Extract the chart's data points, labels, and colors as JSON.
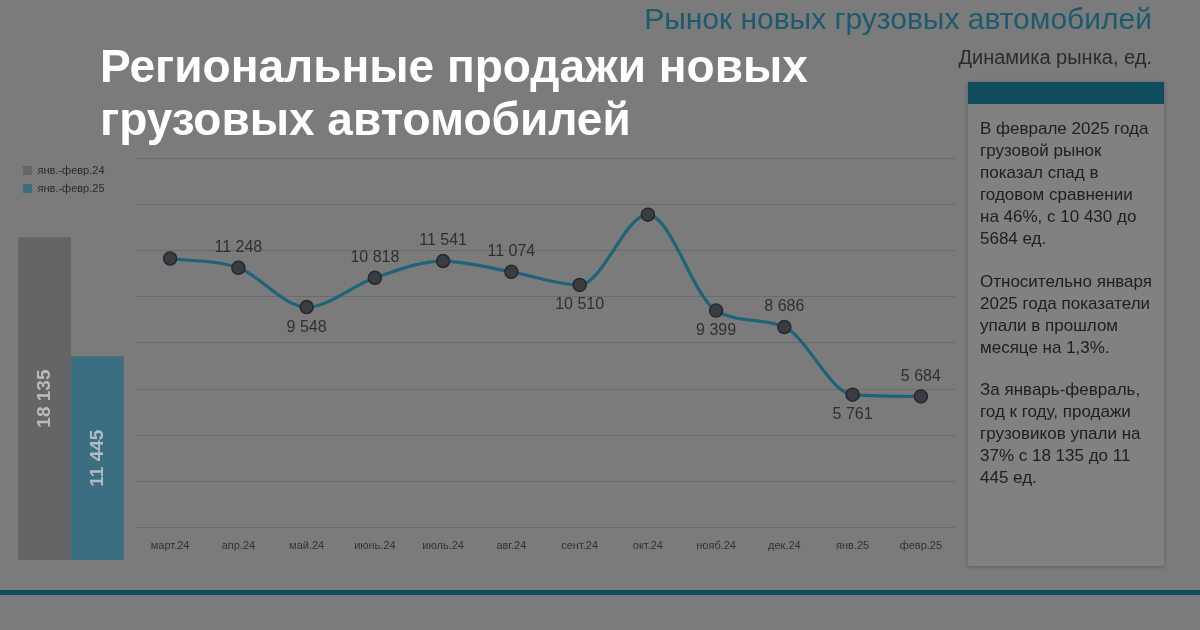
{
  "chart_data": [
    {
      "type": "bar",
      "categories": [
        null
      ],
      "series": [
        {
          "name": "янв.-февр.24",
          "color": "#656565",
          "values": [
            18135
          ],
          "value_labels": [
            "18 135"
          ]
        },
        {
          "name": "янв.-февр.25",
          "color": "#3b6e80",
          "values": [
            11445
          ],
          "value_labels": [
            "11 445"
          ]
        }
      ],
      "legend": "top left",
      "tick_labels": false
    },
    {
      "type": "line",
      "title": "Региональные продажи новых грузовых автомобилей",
      "subtitle": "Рынок новых грузовых автомобилей",
      "annotations": [
        "Динамика рынка, ед."
      ],
      "categories": [
        "март.24",
        "апр.24",
        "май.24",
        "июнь.24",
        "июль.24",
        "авг.24",
        "сент.24",
        "окт.24",
        "нояб.24",
        "дек.24",
        "янв.25",
        "февр.25"
      ],
      "values": [
        11650,
        11248,
        9548,
        10818,
        11541,
        11074,
        10510,
        13550,
        9399,
        8686,
        5761,
        5684
      ],
      "color": "#1c6479",
      "value_labels": [
        null,
        "11 248",
        "9 548",
        "10 818",
        "11 541",
        "11 074",
        "10 510",
        null,
        "9 399",
        "8 686",
        "5 761",
        "5 684"
      ],
      "ylim": [
        0,
        16000
      ],
      "yticks": [
        {
          "value": 0,
          "label": null
        },
        {
          "value": 2000,
          "label": null
        },
        {
          "value": 4000,
          "label": null
        },
        {
          "value": 6000,
          "label": null
        },
        {
          "value": 8000,
          "label": null
        },
        {
          "value": 10000,
          "label": null
        },
        {
          "value": 12000,
          "label": null
        },
        {
          "value": 14000,
          "label": null
        },
        {
          "value": 16000,
          "label": null
        }
      ],
      "grid": "y",
      "marker": "circle",
      "tick_labels": "x"
    },
    {
      "type": "other",
      "annotations": [
        "В феврале 2025 года грузовой рынок показал спад в годовом сравнении на 46%, с 10 430 до 5684 ед.",
        "Относительно января 2025 года показатели упали в прошлом месяце на 1,3%.",
        "За январь-февраль, год к году, продажи грузовиков упали на 37% с 18 135 до 11 445 ед."
      ]
    }
  ]
}
